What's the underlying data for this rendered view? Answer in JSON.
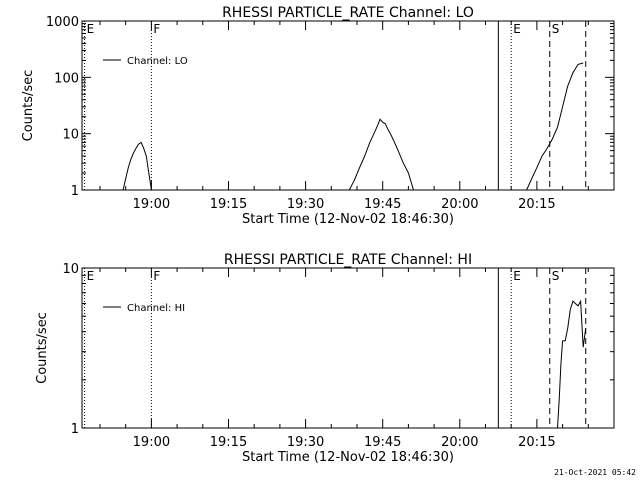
{
  "chart_data": [
    {
      "type": "line",
      "title": "RHESSI PARTICLE_RATE Channel: LO",
      "xlabel": "Start Time (12-Nov-02 18:46:30)",
      "ylabel": "Counts/sec",
      "y_scale": "log",
      "ylim": [
        1,
        1000
      ],
      "y_ticks": [
        1,
        10,
        100,
        1000
      ],
      "y_ticklabels": [
        "1",
        "10",
        "100",
        "1000"
      ],
      "x_ticks": [
        "19:00",
        "19:15",
        "19:30",
        "19:45",
        "20:00",
        "20:15"
      ],
      "legend": {
        "placement": "top-left",
        "entries": [
          "Channel: LO"
        ]
      },
      "grid": false,
      "series": [
        {
          "name": "Channel: LO",
          "segments": [
            [
              [
                "18:54:30",
                1
              ],
              [
                "18:55:00",
                1.6
              ],
              [
                "18:55:30",
                2.5
              ],
              [
                "18:56:00",
                3.5
              ],
              [
                "18:56:30",
                4.5
              ],
              [
                "18:57:00",
                5.5
              ],
              [
                "18:57:30",
                6.5
              ],
              [
                "18:58:00",
                7
              ],
              [
                "18:58:30",
                5.5
              ],
              [
                "18:59:00",
                4
              ],
              [
                "18:59:30",
                2
              ],
              [
                "19:00:00",
                1
              ]
            ],
            [
              [
                "19:38:30",
                1
              ],
              [
                "19:39:30",
                1.5
              ],
              [
                "19:40:30",
                2.5
              ],
              [
                "19:41:30",
                4
              ],
              [
                "19:42:30",
                7
              ],
              [
                "19:43:30",
                11
              ],
              [
                "19:44:00",
                14
              ],
              [
                "19:44:30",
                18
              ],
              [
                "19:45:00",
                16
              ],
              [
                "19:45:30",
                15
              ],
              [
                "19:46:00",
                12
              ],
              [
                "19:46:30",
                10
              ],
              [
                "19:47:00",
                8
              ],
              [
                "19:48:00",
                5
              ],
              [
                "19:49:00",
                3
              ],
              [
                "19:50:00",
                2
              ],
              [
                "19:51:00",
                1
              ]
            ],
            [
              [
                "20:13:00",
                1
              ],
              [
                "20:14:00",
                1.6
              ],
              [
                "20:15:00",
                2.5
              ],
              [
                "20:16:00",
                4
              ],
              [
                "20:17:00",
                5.5
              ],
              [
                "20:18:00",
                8
              ],
              [
                "20:19:00",
                13
              ],
              [
                "20:20:00",
                30
              ],
              [
                "20:21:00",
                70
              ],
              [
                "20:22:00",
                120
              ],
              [
                "20:23:00",
                170
              ],
              [
                "20:24:00",
                180
              ]
            ]
          ]
        }
      ],
      "markers": [
        {
          "label": "E",
          "time": "18:47:00",
          "style": "dotted"
        },
        {
          "label": "F",
          "time": "19:00:00",
          "style": "dotted"
        },
        {
          "label": "",
          "time": "20:07:30",
          "style": "solid"
        },
        {
          "label": "E",
          "time": "20:10:00",
          "style": "dotted"
        },
        {
          "label": "S",
          "time": "20:17:30",
          "style": "dashed"
        },
        {
          "label": "",
          "time": "20:24:30",
          "style": "dashed"
        }
      ]
    },
    {
      "type": "line",
      "title": "RHESSI PARTICLE_RATE Channel: HI",
      "xlabel": "Start Time (12-Nov-02 18:46:30)",
      "ylabel": "Counts/sec",
      "y_scale": "log",
      "ylim": [
        1,
        10
      ],
      "y_ticks": [
        1,
        10
      ],
      "y_ticklabels": [
        "1",
        "10"
      ],
      "x_ticks": [
        "19:00",
        "19:15",
        "19:30",
        "19:45",
        "20:00",
        "20:15"
      ],
      "legend": {
        "placement": "top-left",
        "entries": [
          "Channel: HI"
        ]
      },
      "grid": false,
      "series": [
        {
          "name": "Channel: HI",
          "segments": [
            [
              [
                "20:19:00",
                1
              ],
              [
                "20:19:20",
                1.5
              ],
              [
                "20:19:40",
                2.5
              ],
              [
                "20:20:00",
                3.5
              ],
              [
                "20:20:30",
                3.5
              ],
              [
                "20:21:00",
                4.2
              ],
              [
                "20:21:30",
                5.5
              ],
              [
                "20:22:00",
                6.2
              ],
              [
                "20:22:30",
                6
              ],
              [
                "20:23:00",
                5.8
              ],
              [
                "20:23:30",
                6.2
              ],
              [
                "20:24:00",
                3.2
              ],
              [
                "20:24:30",
                4.2
              ]
            ]
          ]
        }
      ],
      "markers": [
        {
          "label": "E",
          "time": "18:47:00",
          "style": "dotted"
        },
        {
          "label": "F",
          "time": "19:00:00",
          "style": "dotted"
        },
        {
          "label": "",
          "time": "20:07:30",
          "style": "solid"
        },
        {
          "label": "E",
          "time": "20:10:00",
          "style": "dotted"
        },
        {
          "label": "S",
          "time": "20:17:30",
          "style": "dashed"
        },
        {
          "label": "",
          "time": "20:24:30",
          "style": "dashed"
        }
      ]
    }
  ],
  "footer": {
    "timestamp": "21-Oct-2021 05:42"
  }
}
